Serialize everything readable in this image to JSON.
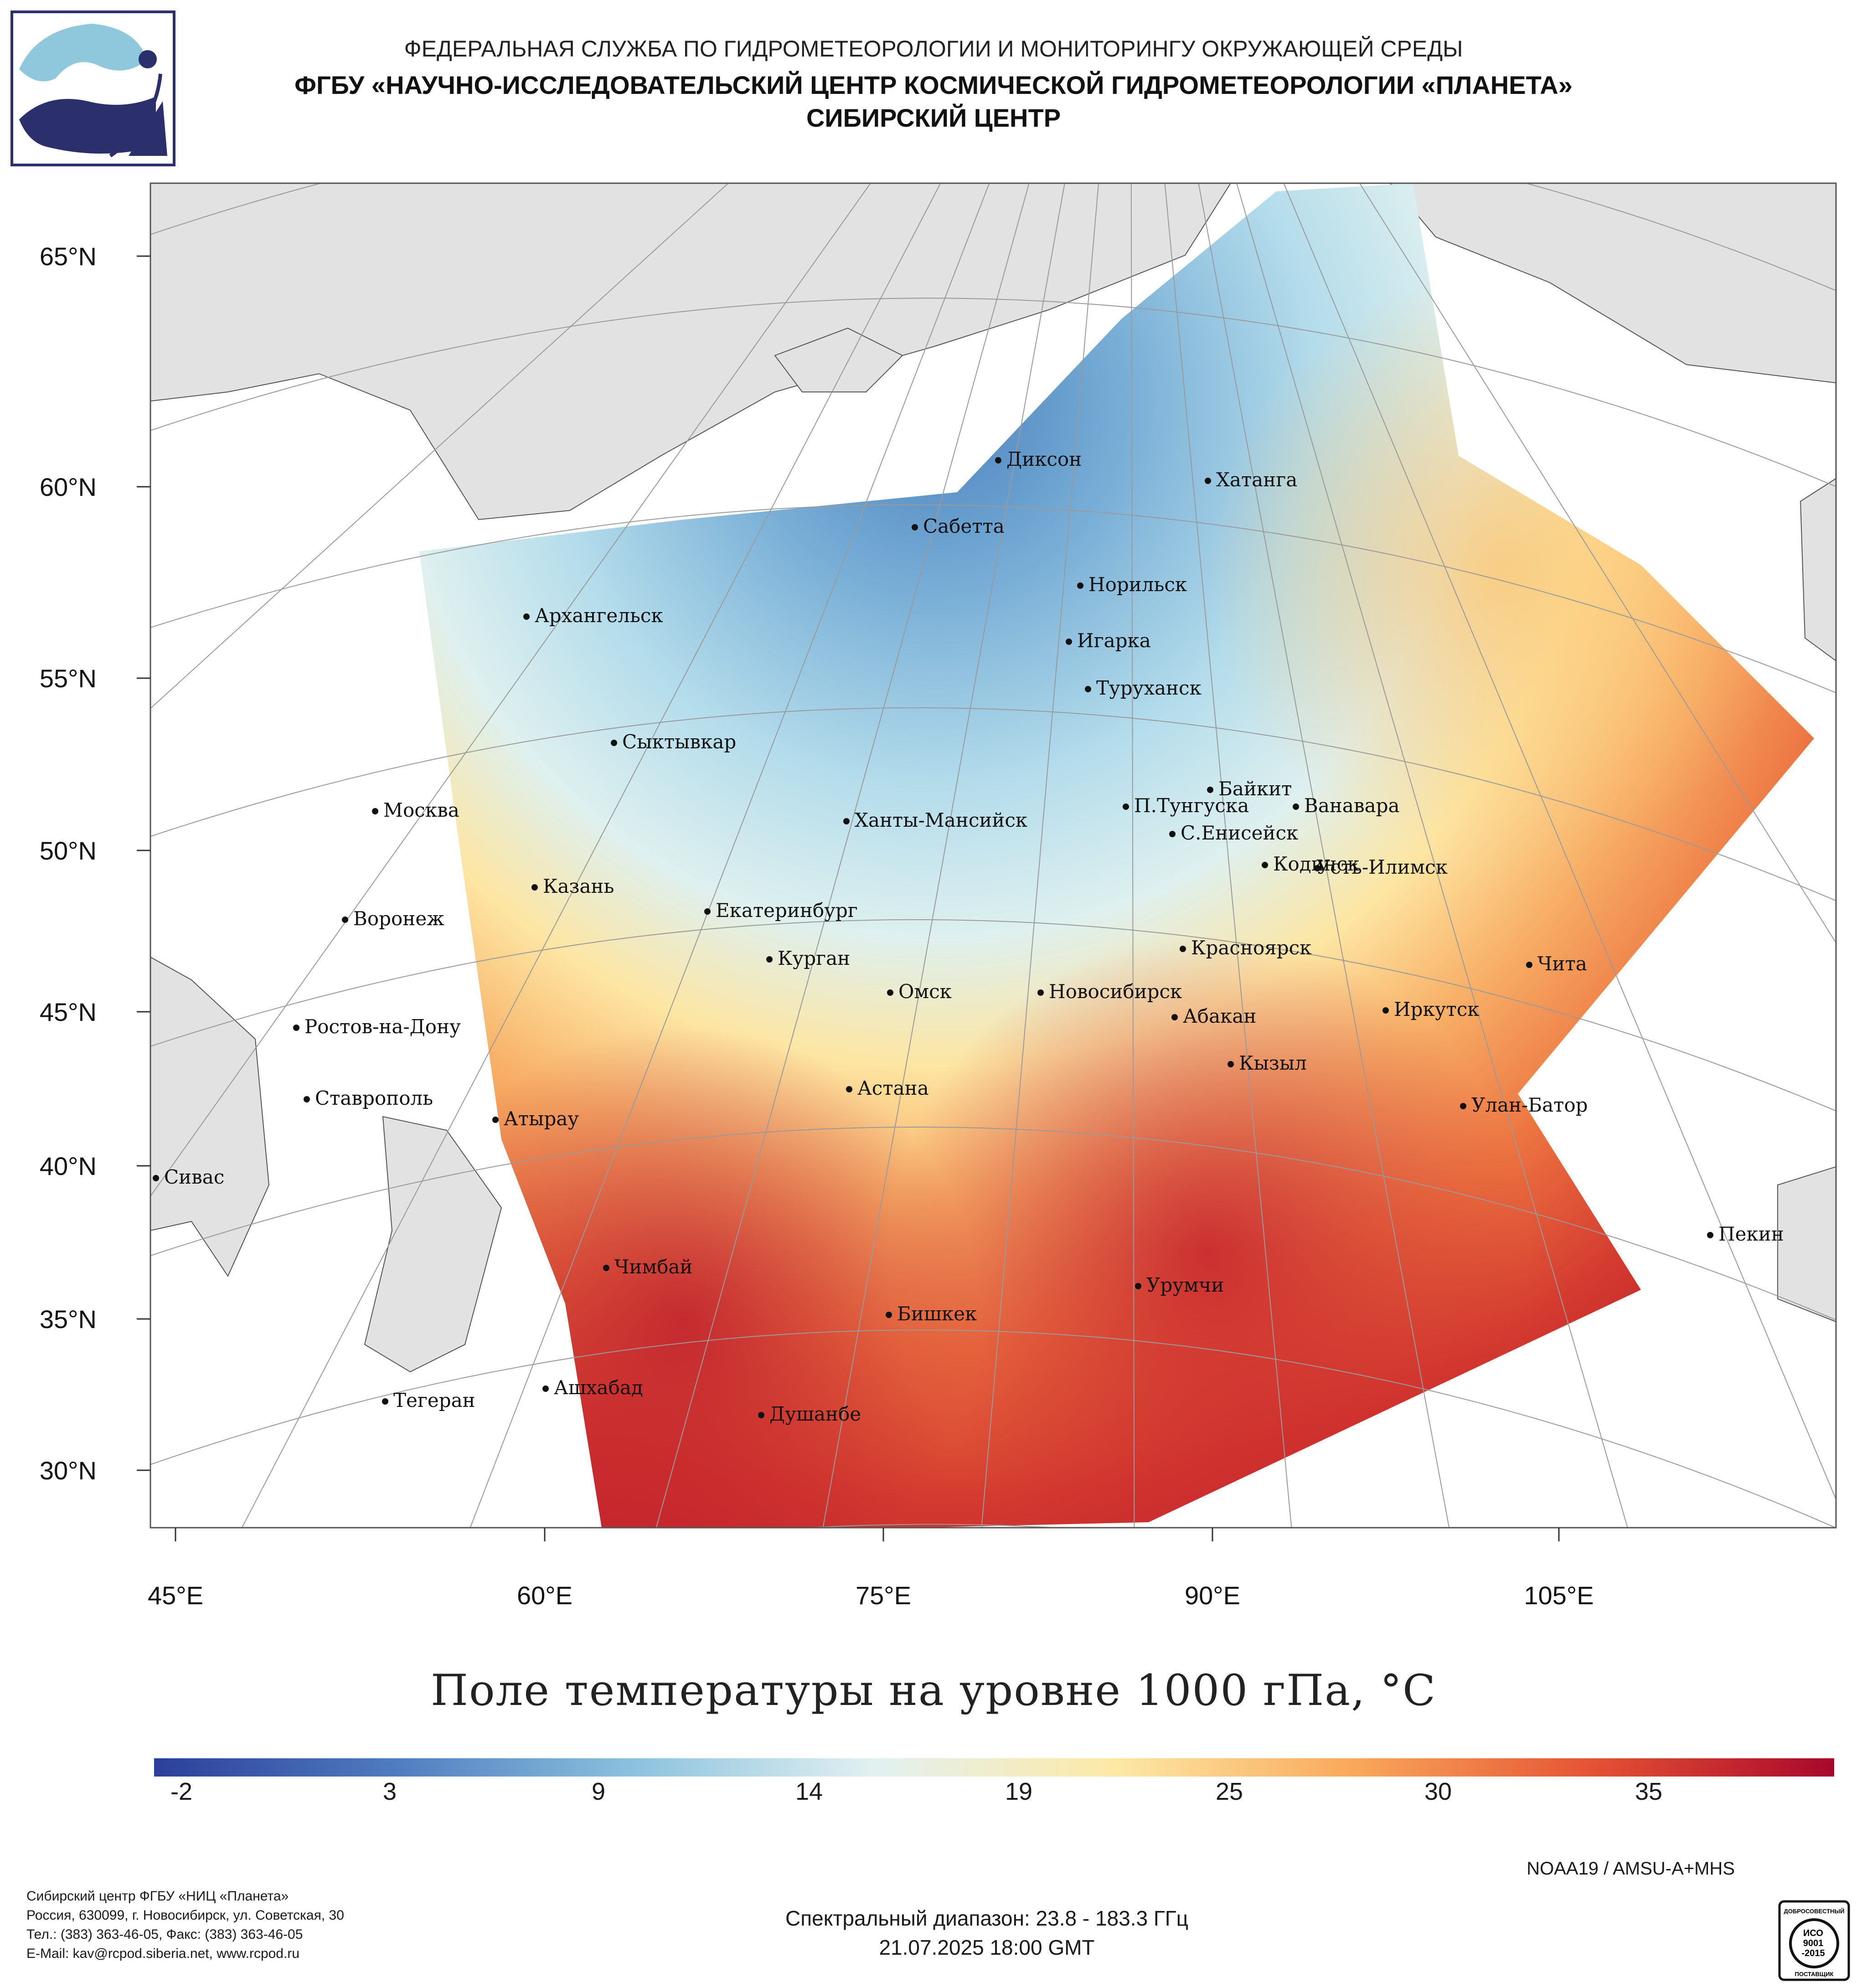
{
  "header": {
    "line1": "ФЕДЕРАЛЬНАЯ СЛУЖБА ПО ГИДРОМЕТЕОРОЛОГИИ И МОНИТОРИНГУ ОКРУЖАЮЩЕЙ СРЕДЫ",
    "line2": "ФГБУ «НАУЧНО-ИССЛЕДОВАТЕЛЬСКИЙ ЦЕНТР КОСМИЧЕСКОЙ ГИДРОМЕТЕОРОЛОГИИ «ПЛАНЕТА»",
    "line3": "СИБИРСКИЙ ЦЕНТР"
  },
  "logo": {
    "icon": "planeta-logo-icon",
    "colors": [
      "#8fc8dc",
      "#2b2f6b"
    ]
  },
  "map": {
    "lat_labels": [
      "65°N",
      "60°N",
      "55°N",
      "50°N",
      "45°N",
      "40°N",
      "35°N",
      "30°N"
    ],
    "lon_labels": [
      "45°E",
      "60°E",
      "75°E",
      "90°E",
      "105°E"
    ],
    "cities": [
      "Диксон",
      "Хатанга",
      "Сабетта",
      "Архангельск",
      "Норильск",
      "Игарка",
      "Туруханск",
      "Сыктывкар",
      "Москва",
      "Байкит",
      "П.Тунгуска",
      "Ванавара",
      "Ханты-Мансийск",
      "С.Енисейск",
      "Кодинск",
      "Усть-Илимск",
      "Казань",
      "Воронеж",
      "Екатеринбург",
      "Курган",
      "Красноярск",
      "Чита",
      "Омск",
      "Новосибирск",
      "Иркутск",
      "Абакан",
      "Ростов-на-Дону",
      "Кызыл",
      "Ставрополь",
      "Астана",
      "Улан-Батор",
      "Атырау",
      "Сивас",
      "Пекин",
      "Чимбай",
      "Урумчи",
      "Бишкек",
      "Ашхабад",
      "Тегеран",
      "Душанбе"
    ]
  },
  "colorbar": {
    "title": "Поле температуры на уровне 1000 гПа, °C",
    "ticks": [
      "-2",
      "3",
      "9",
      "14",
      "19",
      "25",
      "30",
      "35"
    ],
    "colors": [
      "#2c3f9a",
      "#4f7cbf",
      "#8cc2de",
      "#e2f1f1",
      "#fde9a6",
      "#f9a85b",
      "#e45234",
      "#a8072b"
    ]
  },
  "satellite": "NOAA19 / AMSU-A+MHS",
  "spectral": "Спектральный диапазон: 23.8 - 183.3 ГГц",
  "datetime": "21.07.2025 18:00 GMT",
  "footer": {
    "org": "Сибирский центр ФГБУ «НИЦ «Планета»",
    "address": "Россия, 630099, г. Новосибирск, ул. Советская, 30",
    "phones": "Тел.: (383) 363-46-05, Факс: (383) 363-46-05",
    "email": "E-Mail: kav@rcpod.siberia.net, www.rcpod.ru"
  },
  "iso_badge": {
    "top": "ДОБРОСОВЕСТНЫЙ",
    "mid1": "ИСО",
    "mid2": "9001",
    "mid3": "-2015",
    "bottom": "ПОСТАВЩИК"
  }
}
